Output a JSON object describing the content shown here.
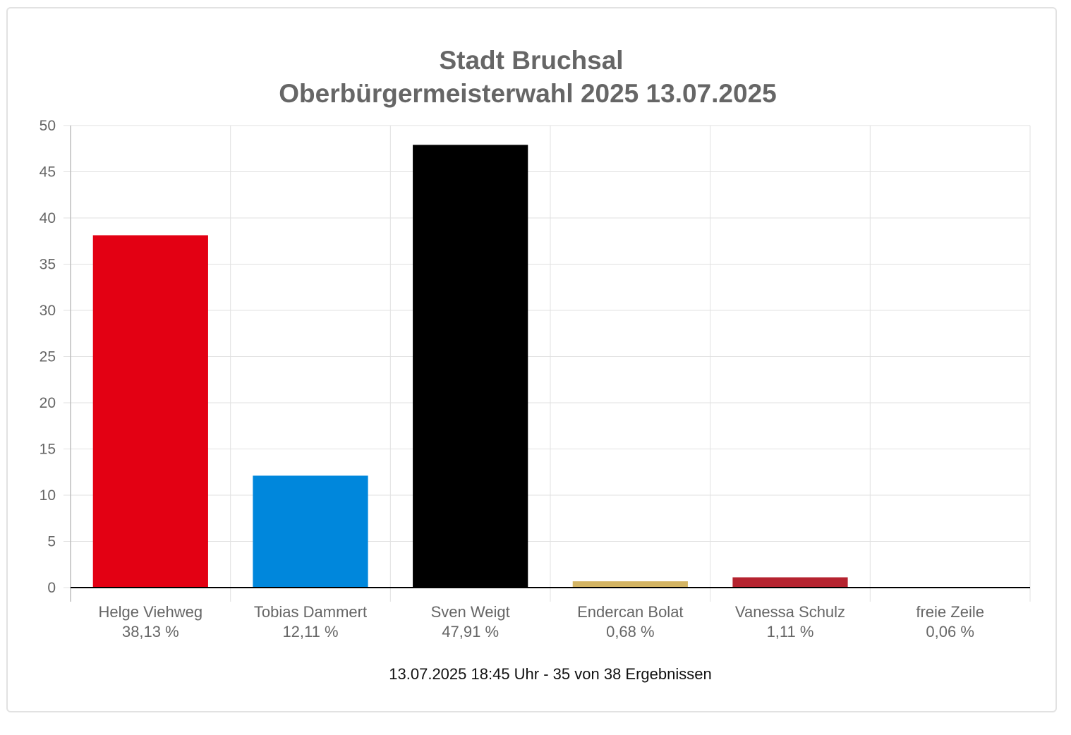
{
  "chart_data": {
    "type": "bar",
    "title": [
      "Stadt Bruchsal",
      "Oberbürgermeisterwahl 2025 13.07.2025"
    ],
    "categories": [
      "Helge Viehweg",
      "Tobias Dammert",
      "Sven Weigt",
      "Endercan Bolat",
      "Vanessa Schulz",
      "freie Zeile"
    ],
    "value_labels": [
      "38,13 %",
      "12,11 %",
      "47,91 %",
      "0,68 %",
      "1,11 %",
      "0,06 %"
    ],
    "values": [
      38.13,
      12.11,
      47.91,
      0.68,
      1.11,
      0.06
    ],
    "colors": [
      "#e30013",
      "#0087dc",
      "#000000",
      "#d3b463",
      "#b5232f",
      "#cccccc"
    ],
    "ylim": [
      0,
      50
    ],
    "yticks": [
      0,
      5,
      10,
      15,
      20,
      25,
      30,
      35,
      40,
      45,
      50
    ],
    "grid": true,
    "footer": "13.07.2025 18:45 Uhr - 35 von 38 Ergebnissen"
  }
}
